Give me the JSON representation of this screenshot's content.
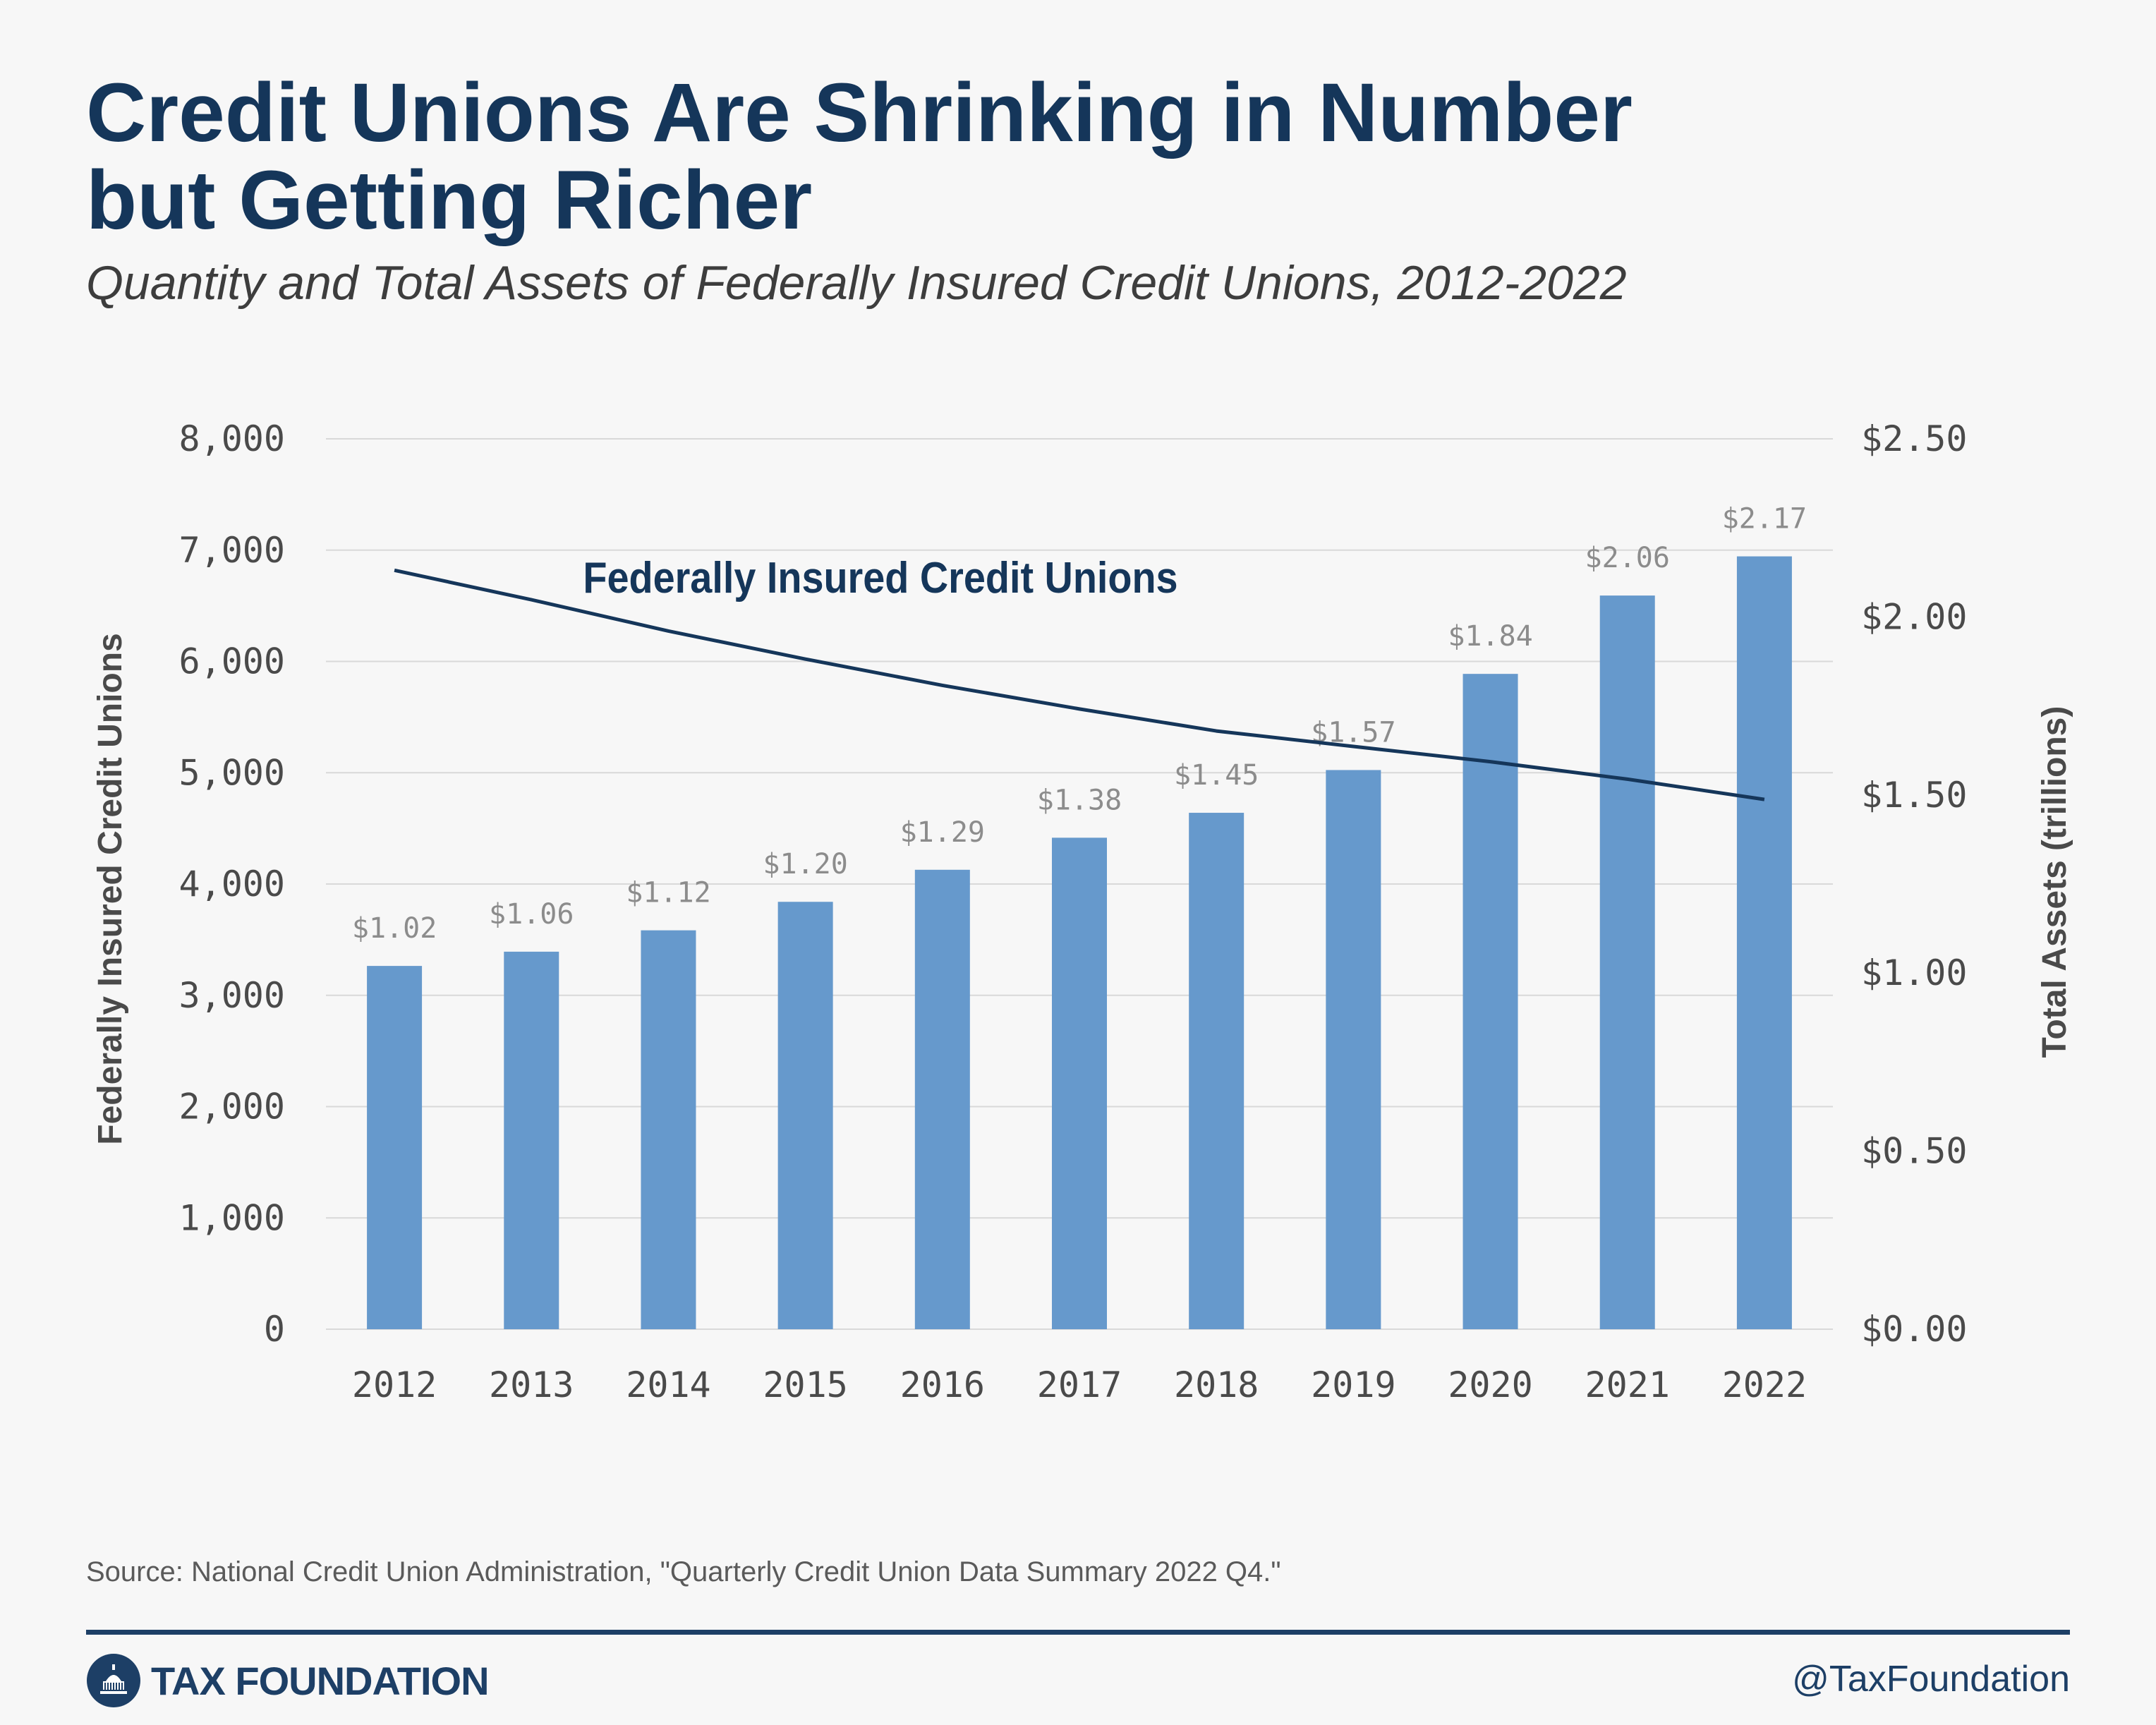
{
  "header": {
    "title_line1": "Credit Unions Are Shrinking in Number",
    "title_line2": "but Getting Richer",
    "subtitle": "Quantity and Total Assets of Federally Insured Credit Unions, 2012-2022"
  },
  "footer": {
    "source": "Source: National Credit Union Administration, \"Quarterly Credit Union Data Summary 2022 Q4.\"",
    "logo_text": "TAX FOUNDATION",
    "handle": "@TaxFoundation"
  },
  "colors": {
    "bar": "#6699cc",
    "line": "#15365a",
    "title": "#15365a",
    "grid": "#d9d9d9",
    "tick": "#4a4a4a",
    "data_label": "#8c8c8c"
  },
  "chart_data": {
    "type": "bar",
    "categories": [
      "2012",
      "2013",
      "2014",
      "2015",
      "2016",
      "2017",
      "2018",
      "2019",
      "2020",
      "2021",
      "2022"
    ],
    "y_left": {
      "label": "Federally Insured Credit Unions",
      "range": [
        0,
        8000
      ],
      "ticks": [
        0,
        1000,
        2000,
        3000,
        4000,
        5000,
        6000,
        7000,
        8000
      ],
      "tick_labels": [
        "0",
        "1,000",
        "2,000",
        "3,000",
        "4,000",
        "5,000",
        "6,000",
        "7,000",
        "8,000"
      ]
    },
    "y_right": {
      "label": "Total Assets (trillions)",
      "range": [
        0,
        2.5
      ],
      "ticks": [
        0,
        0.5,
        1.0,
        1.5,
        2.0,
        2.5
      ],
      "tick_labels": [
        "$0.00",
        "$0.50",
        "$1.00",
        "$1.50",
        "$2.00",
        "$2.50"
      ]
    },
    "series": [
      {
        "type": "bar",
        "axis": "right",
        "values": [
          1.02,
          1.06,
          1.12,
          1.2,
          1.29,
          1.38,
          1.45,
          1.57,
          1.84,
          2.06,
          2.17
        ],
        "labels": [
          "$1.02",
          "$1.06",
          "$1.12",
          "$1.20",
          "$1.29",
          "$1.38",
          "$1.45",
          "$1.57",
          "$1.84",
          "$2.06",
          "$2.17"
        ]
      },
      {
        "type": "line",
        "axis": "left",
        "name": "Federally Insured Credit Unions",
        "values": [
          6819,
          6554,
          6273,
          6021,
          5785,
          5573,
          5375,
          5236,
          5099,
          4942,
          4760
        ]
      }
    ],
    "grid": true
  }
}
